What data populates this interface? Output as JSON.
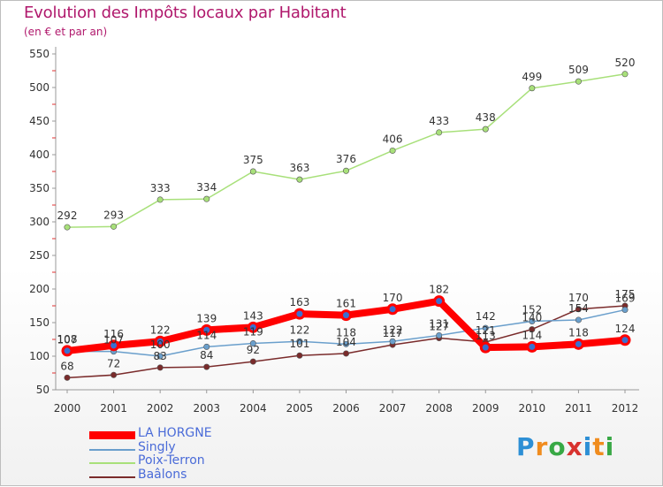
{
  "header": {
    "title": "Evolution des Impôts locaux par Habitant",
    "subtitle": "(en € et par an)"
  },
  "logo": {
    "letters": [
      "P",
      "r",
      "o",
      "x",
      "i",
      "t",
      "i"
    ],
    "colors": [
      "#2d8fd5",
      "#f08c1e",
      "#38a845",
      "#d8322e",
      "#2d8fd5",
      "#f08c1e",
      "#38a845"
    ]
  },
  "chart_data": {
    "type": "line",
    "x": [
      "2000",
      "2001",
      "2002",
      "2003",
      "2004",
      "2005",
      "2006",
      "2007",
      "2008",
      "2009",
      "2010",
      "2011",
      "2012"
    ],
    "ylim": [
      50,
      550
    ],
    "yticks": [
      50,
      100,
      150,
      200,
      250,
      300,
      350,
      400,
      450,
      500,
      550
    ],
    "grid": false,
    "legend_position": "bottom-left",
    "series": [
      {
        "name": "LA HORGNE",
        "color": "#ff0000",
        "values": [
          108,
          116,
          122,
          139,
          143,
          163,
          161,
          170,
          182,
          113,
          114,
          118,
          124
        ],
        "labels": [
          "108",
          "116",
          "122",
          "139",
          "143",
          "163",
          "161",
          "170",
          "182",
          "113",
          "114",
          "118",
          "124"
        ]
      },
      {
        "name": "Singly",
        "color": "#6a9fcc",
        "values": [
          107,
          107,
          100,
          114,
          119,
          122,
          118,
          122,
          131,
          142,
          152,
          154,
          169
        ],
        "labels": [
          "107",
          "107",
          "100",
          "114",
          "119",
          "122",
          "118",
          "122",
          "131",
          "142",
          "152",
          "154",
          "169"
        ]
      },
      {
        "name": "Poix-Terron",
        "color": "#a8e07a",
        "values": [
          292,
          293,
          333,
          334,
          375,
          363,
          376,
          406,
          433,
          438,
          499,
          509,
          520
        ],
        "labels": [
          "292",
          "293",
          "333",
          "334",
          "375",
          "363",
          "376",
          "406",
          "433",
          "438",
          "499",
          "509",
          "520"
        ]
      },
      {
        "name": "Baâlons",
        "color": "#7a2b2b",
        "values": [
          68,
          72,
          83,
          84,
          92,
          101,
          104,
          117,
          127,
          121,
          140,
          170,
          175
        ],
        "labels": [
          "68",
          "72",
          "83",
          "84",
          "92",
          "101",
          "104",
          "117",
          "127",
          "121",
          "140",
          "170",
          "175"
        ]
      }
    ]
  }
}
